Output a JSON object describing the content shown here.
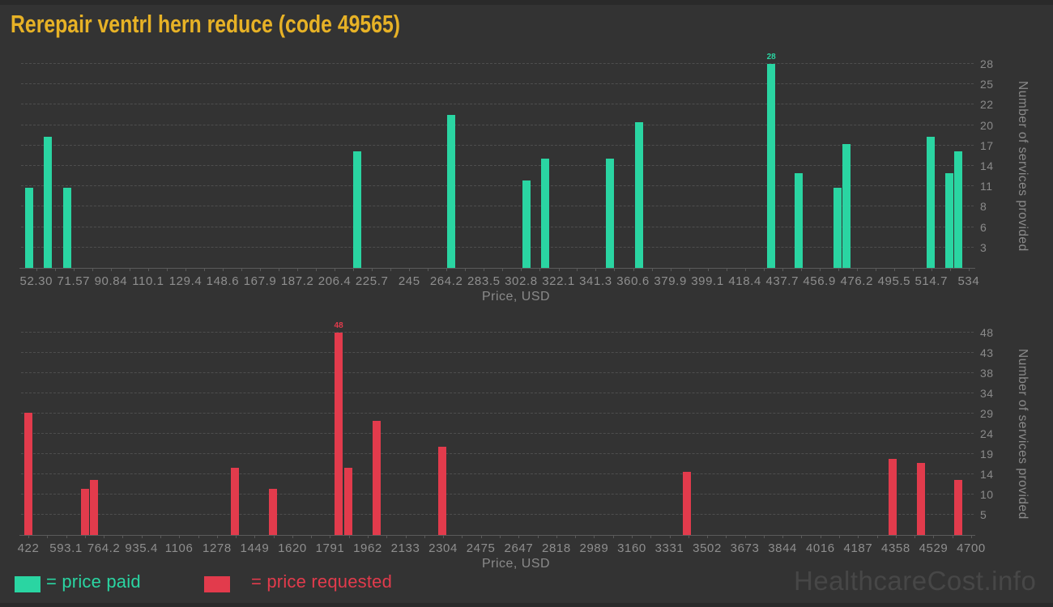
{
  "page": {
    "title": "Rerepair ventrl hern reduce (code 49565)",
    "watermark": "HealthcareCost.info"
  },
  "legend": {
    "items": [
      {
        "label": "= price paid",
        "color": "#2ad5a2"
      },
      {
        "label": "= price requested",
        "color": "#e23b4c"
      }
    ]
  },
  "chart_data": [
    {
      "type": "bar",
      "series": "price paid",
      "color": "#2ad5a2",
      "xlabel": "Price, USD",
      "ylabel": "Number of services provided",
      "xlim": [
        43.6,
        537.4
      ],
      "ylim": [
        0,
        28
      ],
      "grid": "horizontal-dashed",
      "legend_position": "bottom-left",
      "x_tick_labels": [
        "52.30",
        "71.57",
        "90.84",
        "110.1",
        "129.4",
        "148.6",
        "167.9",
        "187.2",
        "206.4",
        "225.7",
        "245",
        "264.2",
        "283.5",
        "302.8",
        "322.1",
        "341.3",
        "360.6",
        "379.9",
        "399.1",
        "418.4",
        "437.7",
        "456.9",
        "476.2",
        "495.5",
        "514.7",
        "534"
      ],
      "y_tick_labels": [
        "28",
        "25",
        "22",
        "20",
        "17",
        "14",
        "11",
        "8",
        "6",
        "3"
      ],
      "bars": [
        {
          "price": 48.7,
          "count": 11
        },
        {
          "price": 58.4,
          "count": 18
        },
        {
          "price": 68.1,
          "count": 11
        },
        {
          "price": 218.3,
          "count": 16
        },
        {
          "price": 266.8,
          "count": 21
        },
        {
          "price": 305.6,
          "count": 12
        },
        {
          "price": 315.2,
          "count": 15
        },
        {
          "price": 348.7,
          "count": 15
        },
        {
          "price": 363.8,
          "count": 20
        },
        {
          "price": 432.0,
          "count": 28
        },
        {
          "price": 446.3,
          "count": 13
        },
        {
          "price": 466.2,
          "count": 11
        },
        {
          "price": 471.0,
          "count": 17
        },
        {
          "price": 514.3,
          "count": 18
        },
        {
          "price": 524.1,
          "count": 13
        },
        {
          "price": 528.8,
          "count": 16
        }
      ],
      "annotation": {
        "price": 432.0,
        "count": 28,
        "text": "28"
      }
    },
    {
      "type": "bar",
      "series": "price requested",
      "color": "#e23b4c",
      "xlabel": "Price, USD",
      "ylabel": "Number of services provided",
      "xlim": [
        381.6,
        4718.4
      ],
      "ylim": [
        0,
        48
      ],
      "grid": "horizontal-dashed",
      "legend_position": "bottom-left",
      "x_tick_labels": [
        "422",
        "593.1",
        "764.2",
        "935.4",
        "1106",
        "1278",
        "1449",
        "1620",
        "1791",
        "1962",
        "2133",
        "2304",
        "2475",
        "2647",
        "2818",
        "2989",
        "3160",
        "3331",
        "3502",
        "3673",
        "3844",
        "4016",
        "4187",
        "4358",
        "4529",
        "4700"
      ],
      "y_tick_labels": [
        "48",
        "43",
        "38",
        "34",
        "29",
        "24",
        "19",
        "14",
        "10",
        "5"
      ],
      "bars": [
        {
          "price": 422,
          "count": 29
        },
        {
          "price": 679,
          "count": 11
        },
        {
          "price": 720,
          "count": 13
        },
        {
          "price": 1359,
          "count": 16
        },
        {
          "price": 1532,
          "count": 11
        },
        {
          "price": 1830,
          "count": 48
        },
        {
          "price": 1874,
          "count": 16
        },
        {
          "price": 2002,
          "count": 27
        },
        {
          "price": 2300,
          "count": 21
        },
        {
          "price": 3410,
          "count": 15
        },
        {
          "price": 4343,
          "count": 18
        },
        {
          "price": 4472,
          "count": 17
        },
        {
          "price": 4641,
          "count": 13
        }
      ],
      "annotation": {
        "price": 1830,
        "count": 48,
        "text": "48"
      }
    }
  ]
}
